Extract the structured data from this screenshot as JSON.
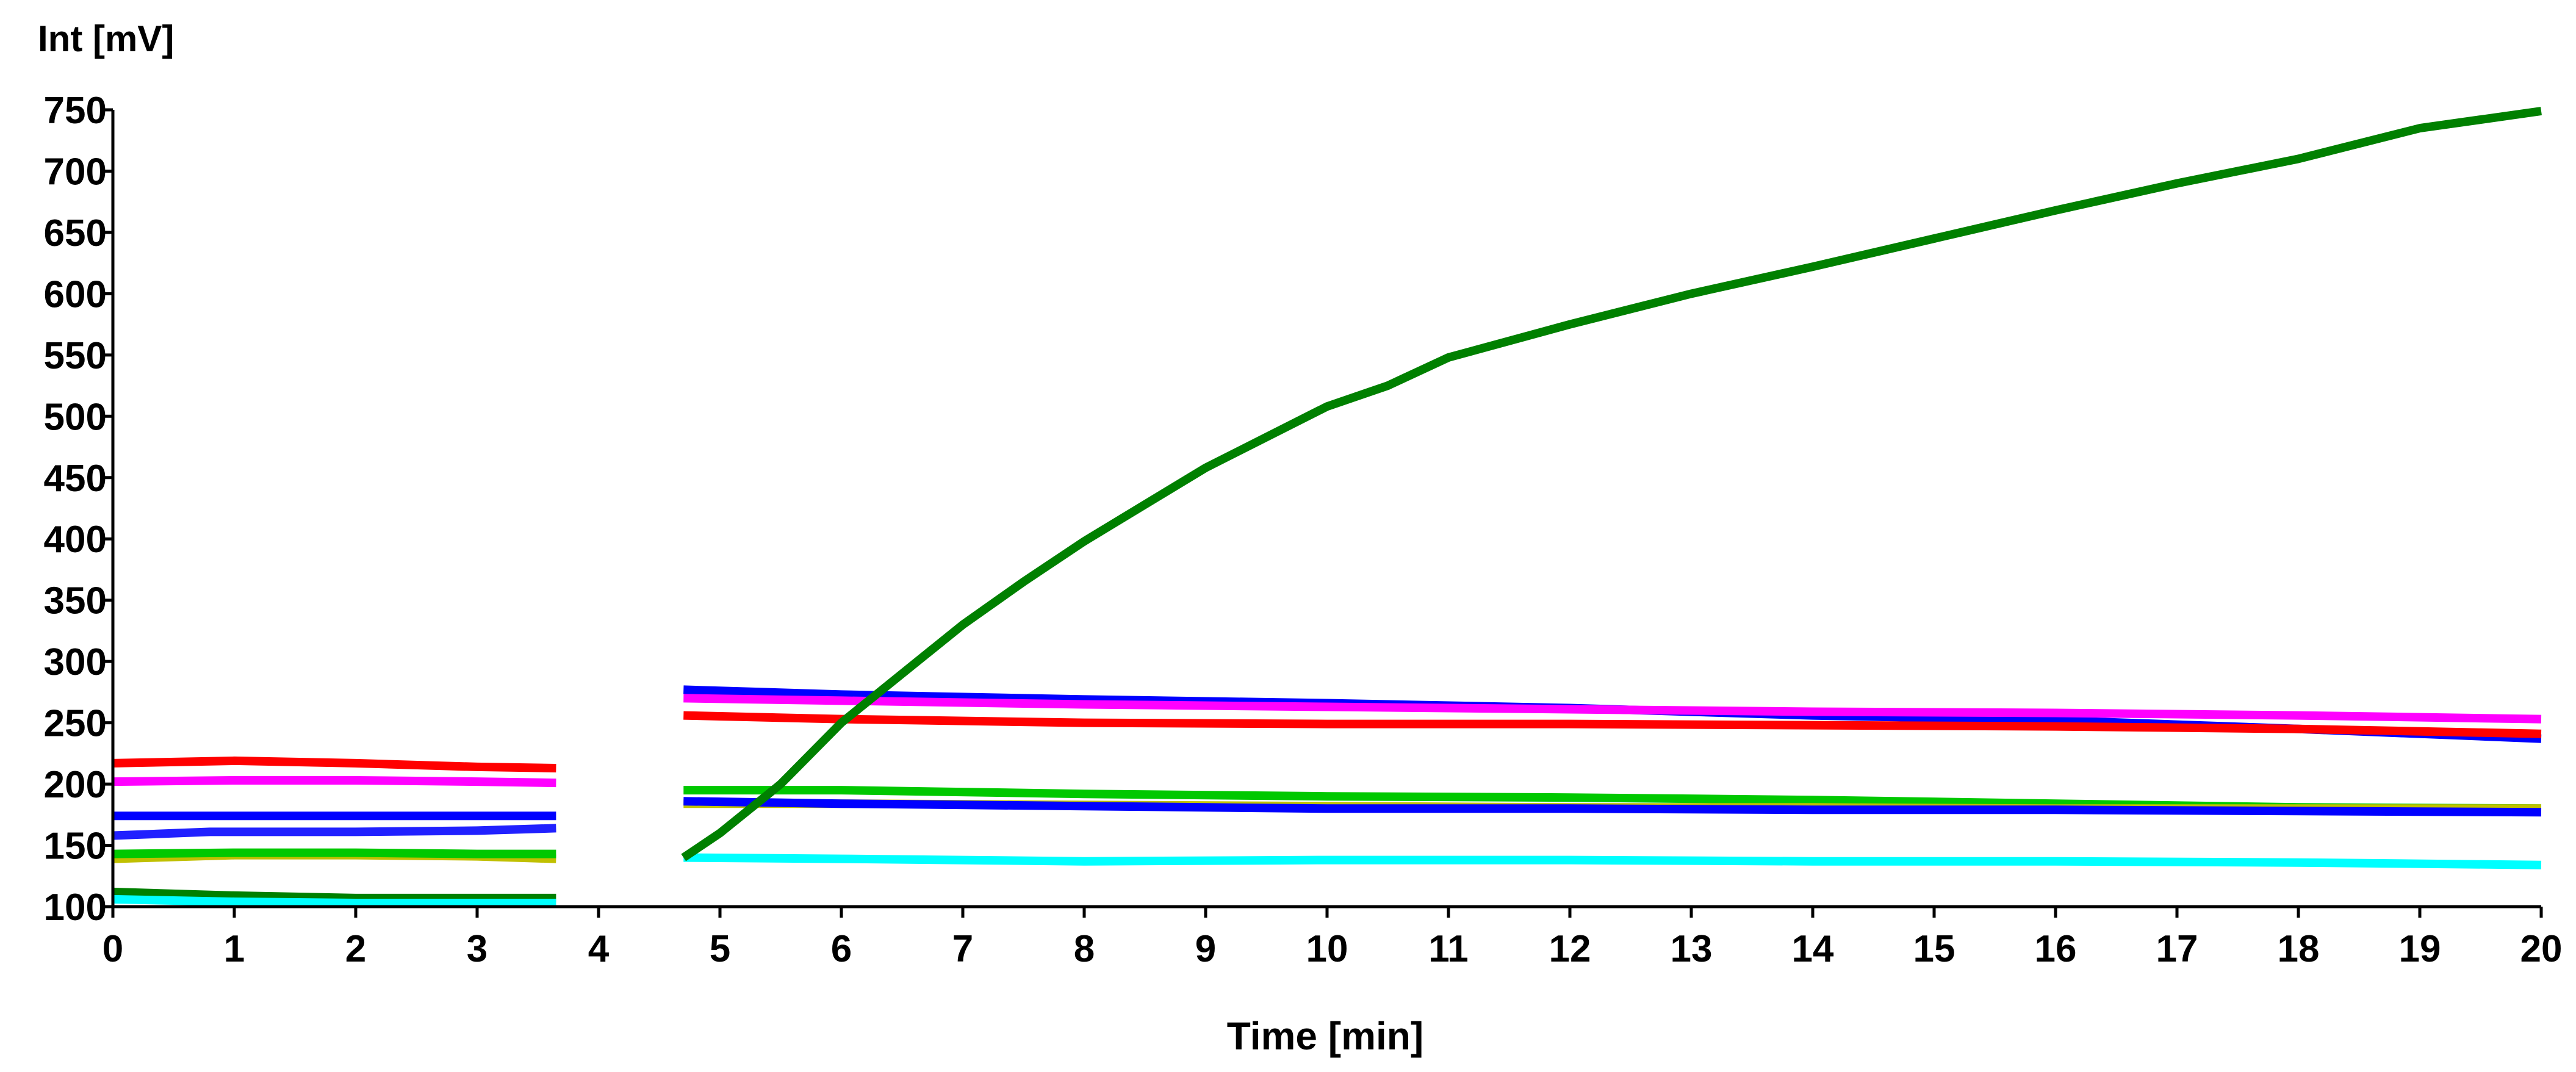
{
  "chart_data": {
    "type": "line",
    "title": "",
    "xlabel": "Time [min]",
    "ylabel": "Int [mV]",
    "xlim": [
      0,
      20
    ],
    "ylim": [
      100,
      750
    ],
    "x_ticks": [
      0,
      1,
      2,
      3,
      4,
      5,
      6,
      7,
      8,
      9,
      10,
      11,
      12,
      13,
      14,
      15,
      16,
      17,
      18,
      19,
      20
    ],
    "y_ticks": [
      100,
      150,
      200,
      250,
      300,
      350,
      400,
      450,
      500,
      550,
      600,
      650,
      700,
      750
    ],
    "grid": false,
    "legend": "none",
    "series": [
      {
        "name": "red-early",
        "color": "#ff0000",
        "points": [
          [
            0,
            217
          ],
          [
            1,
            219
          ],
          [
            2,
            217
          ],
          [
            3,
            214
          ],
          [
            3.65,
            213
          ]
        ]
      },
      {
        "name": "magenta-early",
        "color": "#ff00ff",
        "points": [
          [
            0,
            202
          ],
          [
            1,
            203
          ],
          [
            2,
            203
          ],
          [
            3,
            202
          ],
          [
            3.65,
            201
          ]
        ]
      },
      {
        "name": "blue-early-a",
        "color": "#0000ff",
        "points": [
          [
            0,
            174
          ],
          [
            1,
            174
          ],
          [
            2,
            174
          ],
          [
            3,
            174
          ],
          [
            3.65,
            174
          ]
        ]
      },
      {
        "name": "blue-early-b",
        "color": "#2020ff",
        "points": [
          [
            0,
            158
          ],
          [
            0.8,
            161
          ],
          [
            2,
            161
          ],
          [
            3,
            162
          ],
          [
            3.65,
            164
          ]
        ]
      },
      {
        "name": "olive-early",
        "color": "#c0c000",
        "points": [
          [
            0,
            139
          ],
          [
            1,
            142
          ],
          [
            2,
            142
          ],
          [
            3,
            141
          ],
          [
            3.65,
            139
          ]
        ]
      },
      {
        "name": "green-early",
        "color": "#00c800",
        "points": [
          [
            0,
            143
          ],
          [
            1,
            144
          ],
          [
            2,
            144
          ],
          [
            3,
            143
          ],
          [
            3.65,
            143
          ]
        ]
      },
      {
        "name": "darkgreen-early",
        "color": "#008000",
        "points": [
          [
            0,
            112
          ],
          [
            1,
            109
          ],
          [
            2,
            107
          ],
          [
            3,
            107
          ],
          [
            3.65,
            107
          ]
        ]
      },
      {
        "name": "cyan-early",
        "color": "#00ffff",
        "points": [
          [
            0,
            106
          ],
          [
            1,
            104
          ],
          [
            2,
            103
          ],
          [
            3,
            103
          ],
          [
            3.65,
            103
          ]
        ]
      },
      {
        "name": "blue-late-a",
        "color": "#0000ff",
        "points": [
          [
            4.7,
            277
          ],
          [
            6,
            273
          ],
          [
            8,
            269
          ],
          [
            10,
            266
          ],
          [
            12,
            262
          ],
          [
            14,
            256
          ],
          [
            16,
            252
          ],
          [
            18,
            245
          ],
          [
            20,
            237
          ]
        ]
      },
      {
        "name": "magenta-late",
        "color": "#ff00ff",
        "points": [
          [
            4.7,
            270
          ],
          [
            6,
            268
          ],
          [
            8,
            265
          ],
          [
            10,
            263
          ],
          [
            12,
            261
          ],
          [
            14,
            259
          ],
          [
            16,
            258
          ],
          [
            18,
            256
          ],
          [
            20,
            253
          ]
        ]
      },
      {
        "name": "red-late",
        "color": "#ff0000",
        "points": [
          [
            4.7,
            256
          ],
          [
            6,
            253
          ],
          [
            8,
            250
          ],
          [
            10,
            249
          ],
          [
            12,
            249
          ],
          [
            14,
            248
          ],
          [
            16,
            247
          ],
          [
            18,
            245
          ],
          [
            20,
            241
          ]
        ]
      },
      {
        "name": "green-late",
        "color": "#00c800",
        "points": [
          [
            4.7,
            195
          ],
          [
            6,
            195
          ],
          [
            8,
            192
          ],
          [
            10,
            190
          ],
          [
            12,
            189
          ],
          [
            14,
            187
          ],
          [
            16,
            184
          ],
          [
            18,
            181
          ],
          [
            20,
            180
          ]
        ]
      },
      {
        "name": "olive-late",
        "color": "#c0c000",
        "points": [
          [
            4.7,
            184
          ],
          [
            6,
            184
          ],
          [
            8,
            183
          ],
          [
            10,
            182
          ],
          [
            12,
            181
          ],
          [
            14,
            181
          ],
          [
            16,
            180
          ],
          [
            18,
            180
          ],
          [
            20,
            180
          ]
        ]
      },
      {
        "name": "blue-late-b",
        "color": "#0000ff",
        "points": [
          [
            4.7,
            186
          ],
          [
            6,
            184
          ],
          [
            8,
            182
          ],
          [
            10,
            180
          ],
          [
            12,
            180
          ],
          [
            14,
            179
          ],
          [
            16,
            179
          ],
          [
            18,
            178
          ],
          [
            20,
            177
          ]
        ]
      },
      {
        "name": "cyan-late",
        "color": "#00ffff",
        "points": [
          [
            4.7,
            140
          ],
          [
            6,
            139
          ],
          [
            8,
            137
          ],
          [
            10,
            138
          ],
          [
            12,
            138
          ],
          [
            14,
            137
          ],
          [
            16,
            137
          ],
          [
            18,
            136
          ],
          [
            20,
            134
          ]
        ]
      },
      {
        "name": "darkgreen-rise",
        "color": "#008000",
        "points": [
          [
            4.7,
            140
          ],
          [
            5,
            160
          ],
          [
            5.5,
            200
          ],
          [
            6,
            250
          ],
          [
            6.5,
            290
          ],
          [
            7,
            330
          ],
          [
            7.5,
            365
          ],
          [
            8,
            398
          ],
          [
            9,
            458
          ],
          [
            10,
            508
          ],
          [
            10.5,
            525
          ],
          [
            11,
            548
          ],
          [
            12,
            575
          ],
          [
            13,
            600
          ],
          [
            14,
            622
          ],
          [
            15,
            645
          ],
          [
            16,
            668
          ],
          [
            17,
            690
          ],
          [
            18,
            710
          ],
          [
            19,
            735
          ],
          [
            20,
            749
          ]
        ]
      }
    ]
  }
}
